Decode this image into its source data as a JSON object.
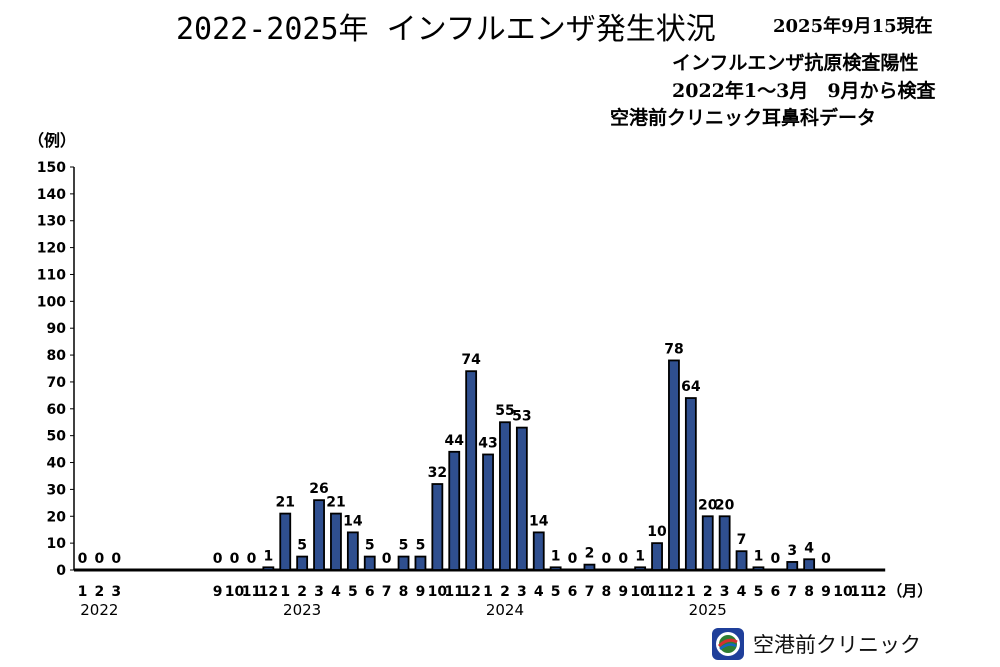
{
  "header": {
    "title": "2022-2025年 インフルエンザ発生状況",
    "as_of": "2025年9月15現在",
    "subtitle1": "インフルエンザ抗原検査陽性",
    "subtitle2": "2022年1〜3月　9月から検査",
    "subtitle3": "空港前クリニック耳鼻科データ"
  },
  "footer": {
    "clinic_name": "空港前クリニック"
  },
  "chart_data": {
    "type": "bar",
    "title": "2022-2025年 インフルエンザ発生状況",
    "ylabel": "（例）",
    "xlabel": "（月）",
    "ylim": [
      0,
      150
    ],
    "yticks": [
      0,
      10,
      20,
      30,
      40,
      50,
      60,
      70,
      80,
      90,
      100,
      110,
      120,
      130,
      140,
      150
    ],
    "grid": false,
    "bar_color": "#2f4f8f",
    "bar_edge_color": "#000000",
    "categories": [
      "2022-1",
      "2022-2",
      "2022-3",
      "2022-9",
      "2022-10",
      "2022-11",
      "2022-12",
      "2023-1",
      "2023-2",
      "2023-3",
      "2023-4",
      "2023-5",
      "2023-6",
      "2023-7",
      "2023-8",
      "2023-9",
      "2023-10",
      "2023-11",
      "2023-12",
      "2024-1",
      "2024-2",
      "2024-3",
      "2024-4",
      "2024-5",
      "2024-6",
      "2024-7",
      "2024-8",
      "2024-9",
      "2024-10",
      "2024-11",
      "2024-12",
      "2025-1",
      "2025-2",
      "2025-3",
      "2025-4",
      "2025-5",
      "2025-6",
      "2025-7",
      "2025-8",
      "2025-9",
      "2025-10",
      "2025-11",
      "2025-12"
    ],
    "month_labels": [
      "1",
      "2",
      "3",
      "9",
      "10",
      "11",
      "12",
      "1",
      "2",
      "3",
      "4",
      "5",
      "6",
      "7",
      "8",
      "9",
      "10",
      "11",
      "12",
      "1",
      "2",
      "3",
      "4",
      "5",
      "6",
      "7",
      "8",
      "9",
      "10",
      "11",
      "12",
      "1",
      "2",
      "3",
      "4",
      "5",
      "6",
      "7",
      "8",
      "9",
      "10",
      "11",
      "12"
    ],
    "values": [
      0,
      0,
      0,
      0,
      0,
      0,
      1,
      21,
      5,
      26,
      21,
      14,
      5,
      0,
      5,
      5,
      32,
      44,
      74,
      43,
      55,
      53,
      14,
      1,
      0,
      2,
      0,
      0,
      1,
      10,
      78,
      64,
      20,
      20,
      7,
      1,
      0,
      3,
      4,
      0,
      null,
      null,
      null
    ],
    "value_labels": [
      "0",
      "0",
      "0",
      "0",
      "0",
      "0",
      "1",
      "21",
      "5",
      "26",
      "21",
      "14",
      "5",
      "0",
      "5",
      "5",
      "32",
      "44",
      "74",
      "43",
      "55",
      "53",
      "14",
      "1",
      "0",
      "2",
      "0",
      "0",
      "1",
      "10",
      "78",
      "64",
      "20",
      "20",
      "7",
      "1",
      "0",
      "3",
      "4",
      "0",
      "",
      "",
      ""
    ],
    "year_labels": [
      {
        "label": "2022",
        "month_index": 1
      },
      {
        "label": "2023",
        "month_index": 8
      },
      {
        "label": "2024",
        "month_index": 20
      },
      {
        "label": "2025",
        "month_index": 32
      }
    ]
  }
}
